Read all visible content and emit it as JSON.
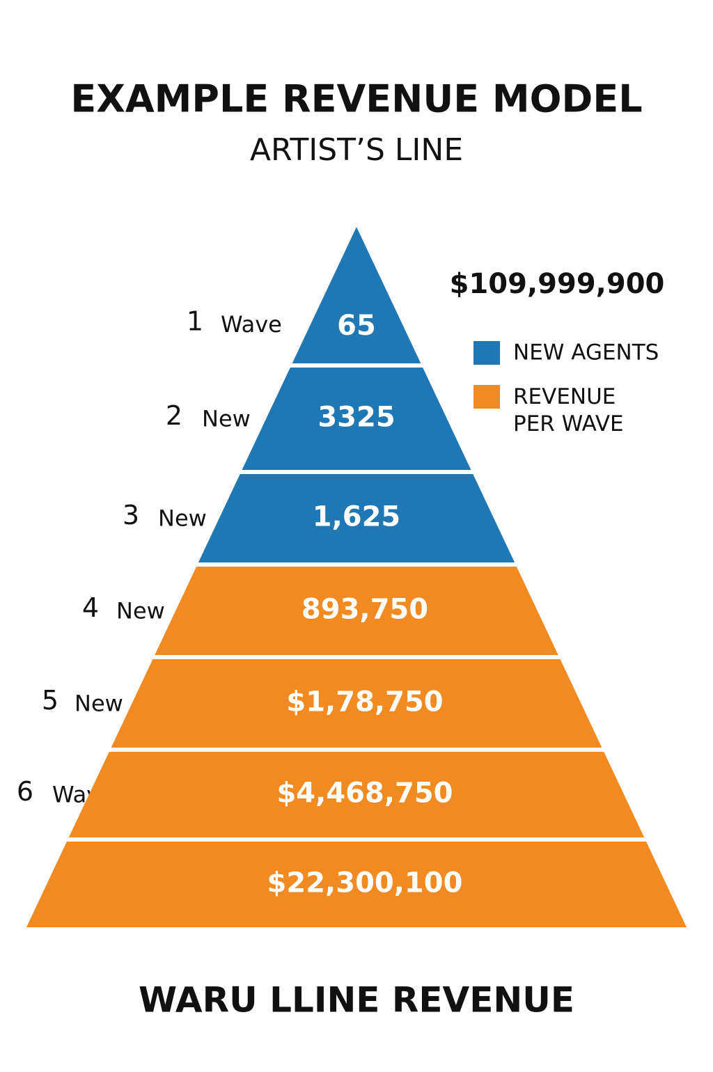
{
  "title": "EXAMPLE REVENUE MODEL",
  "subtitle": "ARTIST’S LINE",
  "total": "$109,999,900",
  "legend": [
    {
      "label": "NEW AGENTS",
      "color": "#1f77b4"
    },
    {
      "label": "REVENUE\nPER WAVE",
      "color": "#f28a22"
    }
  ],
  "tiers": [
    {
      "number": "1",
      "word": "Wave",
      "value": "65",
      "color": "#1f77b4"
    },
    {
      "number": "2",
      "word": "New",
      "value": "3325",
      "color": "#1f77b4"
    },
    {
      "number": "3",
      "word": "New",
      "value": "1,625",
      "color": "#1f77b4"
    },
    {
      "number": "4",
      "word": "New",
      "value": "893,750",
      "color": "#f28a22"
    },
    {
      "number": "5",
      "word": "New",
      "value": "$1,78,750",
      "color": "#f28a22"
    },
    {
      "number": "6",
      "word": "Wave",
      "value": "$4,468,750",
      "color": "#f28a22"
    },
    {
      "value": "$22,300,100",
      "color": "#f28a22"
    }
  ],
  "footer": "WARU LLINE REVENUE"
}
